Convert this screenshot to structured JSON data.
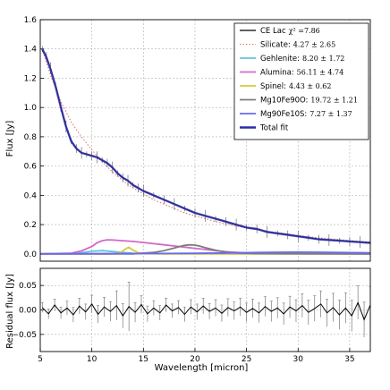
{
  "chart_data": [
    {
      "type": "line",
      "panel": "top",
      "ylabel": "Flux [Jy]",
      "xlim": [
        5,
        37
      ],
      "ylim": [
        -0.05,
        1.6
      ],
      "x_ticks": [
        5,
        10,
        15,
        20,
        25,
        30,
        35
      ],
      "y_ticks": [
        0.0,
        0.2,
        0.4,
        0.6,
        0.8,
        1.0,
        1.2,
        1.4,
        1.6
      ],
      "y_tick_labels": [
        "0.0",
        "0.2",
        "0.4",
        "0.6",
        "0.8",
        "1.0",
        "1.2",
        "1.4",
        "1.6"
      ],
      "grid": true,
      "legend_position": "top-right",
      "series": [
        {
          "key": "ce_lac",
          "name": "CE Lac",
          "stat": "χ² =7.86",
          "color": "#000000",
          "style": "solid-with-errorbars",
          "x": [
            5.2,
            5.6,
            6.0,
            6.5,
            7.0,
            7.5,
            8.0,
            8.5,
            9.0,
            9.5,
            10.0,
            10.5,
            11.0,
            11.5,
            12.0,
            12.5,
            13.0,
            13.5,
            14.0,
            14.5,
            15.0,
            16.0,
            17.0,
            18.0,
            19.0,
            20.0,
            21.0,
            22.0,
            23.0,
            24.0,
            25.0,
            26.0,
            27.0,
            28.0,
            29.0,
            30.0,
            31.0,
            32.0,
            33.0,
            34.0,
            35.0,
            36.0,
            37.0
          ],
          "y": [
            1.4,
            1.35,
            1.27,
            1.15,
            1.0,
            0.87,
            0.77,
            0.72,
            0.69,
            0.68,
            0.67,
            0.66,
            0.64,
            0.62,
            0.59,
            0.55,
            0.52,
            0.5,
            0.47,
            0.45,
            0.43,
            0.4,
            0.37,
            0.34,
            0.31,
            0.28,
            0.26,
            0.24,
            0.22,
            0.2,
            0.18,
            0.17,
            0.15,
            0.14,
            0.13,
            0.12,
            0.11,
            0.1,
            0.095,
            0.09,
            0.085,
            0.08,
            0.075
          ]
        },
        {
          "key": "silicate",
          "name": "Silicate:",
          "stat": "4.27 ± 2.65",
          "color": "#e07a6a",
          "style": "dotted",
          "x": [
            5.2,
            6,
            7,
            8,
            9,
            10,
            11,
            12,
            13,
            14,
            15,
            16,
            17,
            18,
            19,
            20,
            22,
            24,
            26,
            28,
            30,
            32,
            34,
            36,
            37
          ],
          "y": [
            1.4,
            1.22,
            1.04,
            0.9,
            0.8,
            0.71,
            0.63,
            0.56,
            0.5,
            0.45,
            0.41,
            0.37,
            0.34,
            0.31,
            0.28,
            0.26,
            0.22,
            0.19,
            0.165,
            0.145,
            0.125,
            0.11,
            0.097,
            0.085,
            0.08
          ]
        },
        {
          "key": "gehlenite",
          "name": "Gehlenite:",
          "stat": "8.20 ± 1.72",
          "color": "#5fc6d8",
          "style": "solid",
          "x": [
            5,
            8,
            9,
            10,
            11,
            12,
            13,
            14,
            16,
            20,
            25,
            30,
            37
          ],
          "y": [
            0.0,
            0.002,
            0.008,
            0.018,
            0.022,
            0.016,
            0.009,
            0.004,
            0.002,
            0.001,
            0.0,
            0.0,
            0.0
          ]
        },
        {
          "key": "alumina",
          "name": "Alumina:",
          "stat": "56.11 ± 4.74",
          "color": "#d468c8",
          "style": "solid",
          "x": [
            5,
            8,
            9,
            10,
            10.5,
            11,
            11.5,
            12,
            13,
            14,
            15,
            16,
            17,
            18,
            19,
            20,
            21,
            22,
            23,
            24,
            25,
            26,
            28,
            30,
            37
          ],
          "y": [
            0.0,
            0.005,
            0.02,
            0.05,
            0.075,
            0.09,
            0.096,
            0.095,
            0.09,
            0.085,
            0.078,
            0.07,
            0.062,
            0.054,
            0.046,
            0.038,
            0.03,
            0.022,
            0.015,
            0.01,
            0.006,
            0.003,
            0.001,
            0.0,
            0.0
          ]
        },
        {
          "key": "spinel",
          "name": "Spinel:",
          "stat": "4.43 ± 0.62",
          "color": "#d4cc3a",
          "style": "solid",
          "x": [
            5,
            12,
            12.8,
            13.3,
            13.6,
            14.0,
            14.5,
            15,
            17,
            37
          ],
          "y": [
            0.0,
            0.0,
            0.01,
            0.035,
            0.045,
            0.025,
            0.008,
            0.002,
            0.0,
            0.0
          ]
        },
        {
          "key": "mg10",
          "name": "Mg10Fe90O:",
          "stat": "19.72 ± 1.21",
          "color": "#7d7d7d",
          "style": "solid",
          "x": [
            5,
            14,
            16,
            17,
            18,
            18.5,
            19,
            19.5,
            20,
            20.5,
            21,
            22,
            23,
            24,
            26,
            28,
            37
          ],
          "y": [
            0.0,
            0.0,
            0.01,
            0.022,
            0.04,
            0.05,
            0.058,
            0.062,
            0.06,
            0.052,
            0.042,
            0.025,
            0.012,
            0.006,
            0.003,
            0.002,
            0.0
          ]
        },
        {
          "key": "mg90",
          "name": "Mg90Fe10S:",
          "stat": "7.27 ± 1.37",
          "color": "#6a6af0",
          "style": "solid",
          "x": [
            5,
            15,
            20,
            24,
            26,
            28,
            30,
            32,
            34,
            37
          ],
          "y": [
            0.0,
            0.002,
            0.004,
            0.007,
            0.009,
            0.011,
            0.012,
            0.011,
            0.009,
            0.007
          ]
        },
        {
          "key": "total",
          "name": "Total fit",
          "stat": "",
          "color": "#2c2ca8",
          "style": "solid-thick",
          "x": [
            5.2,
            5.6,
            6.0,
            6.5,
            7.0,
            7.5,
            8.0,
            8.5,
            9.0,
            9.5,
            10.0,
            10.5,
            11.0,
            11.5,
            12.0,
            12.5,
            13.0,
            13.5,
            14.0,
            14.5,
            15.0,
            16.0,
            17.0,
            18.0,
            19.0,
            20.0,
            21.0,
            22.0,
            23.0,
            24.0,
            25.0,
            26.0,
            27.0,
            28.0,
            29.0,
            30.0,
            31.0,
            32.0,
            33.0,
            34.0,
            35.0,
            36.0,
            37.0
          ],
          "y": [
            1.4,
            1.34,
            1.26,
            1.14,
            1.0,
            0.87,
            0.77,
            0.72,
            0.69,
            0.68,
            0.67,
            0.66,
            0.64,
            0.62,
            0.59,
            0.55,
            0.52,
            0.5,
            0.47,
            0.45,
            0.43,
            0.4,
            0.37,
            0.34,
            0.31,
            0.28,
            0.26,
            0.24,
            0.22,
            0.2,
            0.18,
            0.17,
            0.15,
            0.14,
            0.13,
            0.12,
            0.11,
            0.1,
            0.095,
            0.09,
            0.085,
            0.08,
            0.075
          ]
        }
      ]
    },
    {
      "type": "line",
      "panel": "bottom",
      "xlabel": "Wavelength [micron]",
      "ylabel": "Residual flux [Jy]",
      "xlim": [
        5,
        37
      ],
      "ylim": [
        -0.085,
        0.085
      ],
      "x_ticks": [
        5,
        10,
        15,
        20,
        25,
        30,
        35
      ],
      "x_tick_labels": [
        "5",
        "10",
        "15",
        "20",
        "25",
        "30",
        "35"
      ],
      "y_ticks": [
        -0.05,
        0.0,
        0.05
      ],
      "y_tick_labels": [
        "−0.05",
        "0.00",
        "0.05"
      ],
      "grid": true,
      "series": [
        {
          "name": "",
          "color": "#000000",
          "x": [
            5.2,
            5.8,
            6.4,
            7.0,
            7.6,
            8.2,
            8.8,
            9.4,
            10.0,
            10.6,
            11.2,
            11.8,
            12.4,
            13.0,
            13.6,
            14.2,
            14.8,
            15.4,
            16.0,
            16.6,
            17.2,
            17.8,
            18.4,
            19.0,
            19.6,
            20.2,
            20.8,
            21.4,
            22.0,
            22.6,
            23.2,
            23.8,
            24.4,
            25.0,
            25.6,
            26.2,
            26.8,
            27.4,
            28.0,
            28.6,
            29.2,
            29.8,
            30.4,
            31.0,
            31.6,
            32.2,
            32.8,
            33.4,
            34.0,
            34.6,
            35.2,
            35.8,
            36.4,
            37.0
          ],
          "y": [
            0.005,
            -0.008,
            0.01,
            -0.006,
            0.004,
            -0.01,
            0.008,
            -0.004,
            0.012,
            -0.009,
            0.006,
            -0.003,
            0.009,
            -0.012,
            0.007,
            -0.005,
            0.011,
            -0.008,
            0.004,
            -0.006,
            0.01,
            -0.002,
            0.005,
            -0.009,
            0.006,
            -0.004,
            0.008,
            -0.003,
            0.004,
            -0.007,
            0.005,
            -0.002,
            0.006,
            -0.005,
            0.003,
            -0.006,
            0.007,
            -0.003,
            0.004,
            -0.008,
            0.006,
            -0.002,
            0.009,
            -0.005,
            0.003,
            0.012,
            -0.006,
            0.005,
            -0.01,
            0.004,
            -0.012,
            0.015,
            -0.02,
            0.01
          ],
          "err": [
            0.01,
            0.01,
            0.012,
            0.012,
            0.014,
            0.015,
            0.016,
            0.016,
            0.018,
            0.018,
            0.02,
            0.02,
            0.03,
            0.025,
            0.05,
            0.02,
            0.018,
            0.016,
            0.015,
            0.015,
            0.014,
            0.014,
            0.014,
            0.015,
            0.015,
            0.016,
            0.016,
            0.016,
            0.017,
            0.017,
            0.018,
            0.018,
            0.018,
            0.019,
            0.019,
            0.02,
            0.02,
            0.021,
            0.021,
            0.022,
            0.022,
            0.023,
            0.024,
            0.025,
            0.026,
            0.027,
            0.028,
            0.029,
            0.03,
            0.031,
            0.032,
            0.034,
            0.036,
            0.038
          ]
        }
      ]
    }
  ]
}
